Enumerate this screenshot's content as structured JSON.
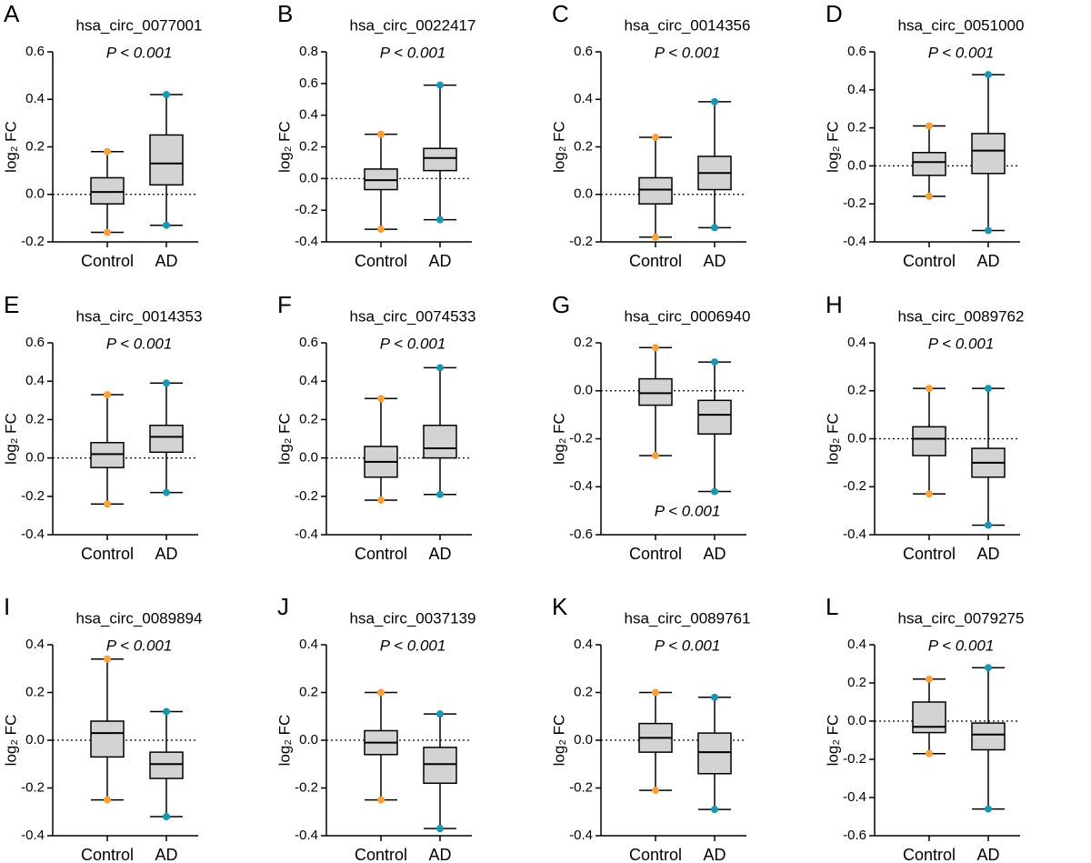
{
  "chart_data": [
    {
      "type": "box",
      "panel": "A",
      "title": "hsa_circ_0077001",
      "subtitle": "P < 0.001",
      "subtitle_position": "top",
      "ylabel": "log₂ FC",
      "categories": [
        "Control",
        "AD"
      ],
      "ylim": [
        -0.2,
        0.6
      ],
      "yticks": [
        -0.2,
        {
          "value": 0,
          "label": "0.0"
        },
        0.2,
        0.4,
        0.6
      ],
      "series": [
        {
          "color": "#f7a13c",
          "min": -0.16,
          "q1": -0.04,
          "median": 0.01,
          "q3": 0.07,
          "max": 0.18
        },
        {
          "color": "#1a96b0",
          "min": -0.13,
          "q1": 0.04,
          "median": 0.13,
          "q3": 0.25,
          "max": 0.42
        }
      ]
    },
    {
      "type": "box",
      "panel": "B",
      "title": "hsa_circ_0022417",
      "subtitle": "P < 0.001",
      "subtitle_position": "top",
      "ylabel": "log₂ FC",
      "categories": [
        "Control",
        "AD"
      ],
      "ylim": [
        -0.4,
        0.8
      ],
      "yticks": [
        -0.4,
        -0.2,
        {
          "value": 0,
          "label": "0.0"
        },
        0.2,
        0.4,
        0.6,
        0.8
      ],
      "series": [
        {
          "color": "#f7a13c",
          "min": -0.32,
          "q1": -0.07,
          "median": -0.01,
          "q3": 0.06,
          "max": 0.28
        },
        {
          "color": "#1a96b0",
          "min": -0.26,
          "q1": 0.05,
          "median": 0.13,
          "q3": 0.19,
          "max": 0.59
        }
      ]
    },
    {
      "type": "box",
      "panel": "C",
      "title": "hsa_circ_0014356",
      "subtitle": "P < 0.001",
      "subtitle_position": "top",
      "ylabel": "log₂ FC",
      "categories": [
        "Control",
        "AD"
      ],
      "ylim": [
        -0.2,
        0.6
      ],
      "yticks": [
        -0.2,
        {
          "value": 0,
          "label": "0.0"
        },
        0.2,
        0.4,
        0.6
      ],
      "series": [
        {
          "color": "#f7a13c",
          "min": -0.18,
          "q1": -0.04,
          "median": 0.02,
          "q3": 0.07,
          "max": 0.24
        },
        {
          "color": "#1a96b0",
          "min": -0.14,
          "q1": 0.02,
          "median": 0.09,
          "q3": 0.16,
          "max": 0.39
        }
      ]
    },
    {
      "type": "box",
      "panel": "D",
      "title": "hsa_circ_0051000",
      "subtitle": "P < 0.001",
      "subtitle_position": "top",
      "ylabel": "log₂ FC",
      "categories": [
        "Control",
        "AD"
      ],
      "ylim": [
        -0.4,
        0.6
      ],
      "yticks": [
        -0.4,
        -0.2,
        {
          "value": 0,
          "label": "0.0"
        },
        0.2,
        0.4,
        0.6
      ],
      "series": [
        {
          "color": "#f7a13c",
          "min": -0.16,
          "q1": -0.05,
          "median": 0.02,
          "q3": 0.07,
          "max": 0.21
        },
        {
          "color": "#1a96b0",
          "min": -0.34,
          "q1": -0.04,
          "median": 0.08,
          "q3": 0.17,
          "max": 0.48
        }
      ]
    },
    {
      "type": "box",
      "panel": "E",
      "title": "hsa_circ_0014353",
      "subtitle": "P < 0.001",
      "subtitle_position": "top",
      "ylabel": "log₂ FC",
      "categories": [
        "Control",
        "AD"
      ],
      "ylim": [
        -0.4,
        0.6
      ],
      "yticks": [
        -0.4,
        -0.2,
        {
          "value": 0,
          "label": "0.0"
        },
        0.2,
        0.4,
        0.6
      ],
      "series": [
        {
          "color": "#f7a13c",
          "min": -0.24,
          "q1": -0.05,
          "median": 0.02,
          "q3": 0.08,
          "max": 0.33
        },
        {
          "color": "#1a96b0",
          "min": -0.18,
          "q1": 0.03,
          "median": 0.11,
          "q3": 0.17,
          "max": 0.39
        }
      ]
    },
    {
      "type": "box",
      "panel": "F",
      "title": "hsa_circ_0074533",
      "subtitle": "P < 0.001",
      "subtitle_position": "top",
      "ylabel": "log₂ FC",
      "categories": [
        "Control",
        "AD"
      ],
      "ylim": [
        -0.4,
        0.6
      ],
      "yticks": [
        -0.4,
        -0.2,
        {
          "value": 0,
          "label": "0.0"
        },
        0.2,
        0.4,
        0.6
      ],
      "series": [
        {
          "color": "#f7a13c",
          "min": -0.22,
          "q1": -0.1,
          "median": -0.02,
          "q3": 0.06,
          "max": 0.31
        },
        {
          "color": "#1a96b0",
          "min": -0.19,
          "q1": 0,
          "median": 0.05,
          "q3": 0.17,
          "max": 0.47
        }
      ]
    },
    {
      "type": "box",
      "panel": "G",
      "title": "hsa_circ_0006940",
      "subtitle": "P < 0.001",
      "subtitle_position": "bottom",
      "ylabel": "log₂ FC",
      "categories": [
        "Control",
        "AD"
      ],
      "ylim": [
        -0.6,
        0.2
      ],
      "yticks": [
        -0.6,
        -0.4,
        -0.2,
        {
          "value": 0,
          "label": "0.0"
        },
        0.2
      ],
      "series": [
        {
          "color": "#f7a13c",
          "min": -0.27,
          "q1": -0.06,
          "median": -0.01,
          "q3": 0.05,
          "max": 0.18
        },
        {
          "color": "#1a96b0",
          "min": -0.42,
          "q1": -0.18,
          "median": -0.1,
          "q3": -0.04,
          "max": 0.12
        }
      ]
    },
    {
      "type": "box",
      "panel": "H",
      "title": "hsa_circ_0089762",
      "subtitle": "P < 0.001",
      "subtitle_position": "top",
      "ylabel": "log₂ FC",
      "categories": [
        "Control",
        "AD"
      ],
      "ylim": [
        -0.4,
        0.4
      ],
      "yticks": [
        -0.4,
        -0.2,
        {
          "value": 0,
          "label": "0.0"
        },
        0.2,
        0.4
      ],
      "series": [
        {
          "color": "#f7a13c",
          "min": -0.23,
          "q1": -0.07,
          "median": 0,
          "q3": 0.05,
          "max": 0.21
        },
        {
          "color": "#1a96b0",
          "min": -0.36,
          "q1": -0.16,
          "median": -0.1,
          "q3": -0.04,
          "max": 0.21
        }
      ]
    },
    {
      "type": "box",
      "panel": "I",
      "title": "hsa_circ_0089894",
      "subtitle": "P < 0.001",
      "subtitle_position": "top",
      "ylabel": "log₂ FC",
      "categories": [
        "Control",
        "AD"
      ],
      "ylim": [
        -0.4,
        0.4
      ],
      "yticks": [
        -0.4,
        -0.2,
        {
          "value": 0,
          "label": "0.0"
        },
        0.2,
        0.4
      ],
      "series": [
        {
          "color": "#f7a13c",
          "min": -0.25,
          "q1": -0.07,
          "median": 0.03,
          "q3": 0.08,
          "max": 0.34
        },
        {
          "color": "#1a96b0",
          "min": -0.32,
          "q1": -0.16,
          "median": -0.1,
          "q3": -0.05,
          "max": 0.12
        }
      ]
    },
    {
      "type": "box",
      "panel": "J",
      "title": "hsa_circ_0037139",
      "subtitle": "P < 0.001",
      "subtitle_position": "top",
      "ylabel": "log₂ FC",
      "categories": [
        "Control",
        "AD"
      ],
      "ylim": [
        -0.4,
        0.4
      ],
      "yticks": [
        -0.4,
        -0.2,
        {
          "value": 0,
          "label": "0.0"
        },
        0.2,
        0.4
      ],
      "series": [
        {
          "color": "#f7a13c",
          "min": -0.25,
          "q1": -0.06,
          "median": -0.01,
          "q3": 0.04,
          "max": 0.2
        },
        {
          "color": "#1a96b0",
          "min": -0.37,
          "q1": -0.18,
          "median": -0.1,
          "q3": -0.03,
          "max": 0.11
        }
      ]
    },
    {
      "type": "box",
      "panel": "K",
      "title": "hsa_circ_0089761",
      "subtitle": "P < 0.001",
      "subtitle_position": "top",
      "ylabel": "log₂ FC",
      "categories": [
        "Control",
        "AD"
      ],
      "ylim": [
        -0.4,
        0.4
      ],
      "yticks": [
        -0.4,
        -0.2,
        {
          "value": 0,
          "label": "0.0"
        },
        0.2,
        0.4
      ],
      "series": [
        {
          "color": "#f7a13c",
          "min": -0.21,
          "q1": -0.05,
          "median": 0.01,
          "q3": 0.07,
          "max": 0.2
        },
        {
          "color": "#1a96b0",
          "min": -0.29,
          "q1": -0.14,
          "median": -0.05,
          "q3": 0.03,
          "max": 0.18
        }
      ]
    },
    {
      "type": "box",
      "panel": "L",
      "title": "hsa_circ_0079275",
      "subtitle": "P < 0.001",
      "subtitle_position": "top",
      "ylabel": "log₂ FC",
      "categories": [
        "Control",
        "AD"
      ],
      "ylim": [
        -0.6,
        0.4
      ],
      "yticks": [
        -0.6,
        -0.4,
        -0.2,
        {
          "value": 0,
          "label": "0.0"
        },
        0.2,
        0.4
      ],
      "series": [
        {
          "color": "#f7a13c",
          "min": -0.17,
          "q1": -0.06,
          "median": -0.03,
          "q3": 0.1,
          "max": 0.22
        },
        {
          "color": "#1a96b0",
          "min": -0.46,
          "q1": -0.15,
          "median": -0.07,
          "q3": -0.01,
          "max": 0.28
        }
      ]
    }
  ]
}
